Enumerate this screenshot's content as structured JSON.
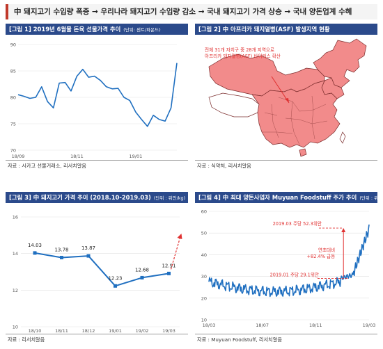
{
  "banner": "中 돼지고기 수입량 폭증 → 우리나라 돼지고기 수입량 감소 → 국내 돼지고기 가격 상승 → 국내 양돈업계 수혜",
  "colors": {
    "header": "#2b4a8b",
    "line": "#1f6fc0",
    "accent": "#e03131",
    "map_fill": "#f28b8b"
  },
  "panels": [
    {
      "title": "[그림 1] 2019년 6월물 돈육 선물가격 추이",
      "unit": "(단위: 센트/파운드)",
      "source": "자료 : 시카고 선물거래소, 리서치알음"
    },
    {
      "title": "[그림 2] 中 아프리카 돼지열병(ASF) 발생지역 현황",
      "unit": "",
      "source": "자료 : 식약처, 리서치알음"
    },
    {
      "title": "[그림 3] 中 돼지고기 가격 추이 (2018.10-2019.03)",
      "unit": "(단위 : 위안/kg)",
      "source": "자료 : 리서치알음"
    },
    {
      "title": "[그림 4] 中 최대 양돈사업자 Muyuan Foodstuff 주가 추이",
      "unit": "(단위 : 위안)",
      "source": "자료 : Muyuan Foodstuff, 리서치알음"
    }
  ],
  "map": {
    "annotation_line1": "전체 31개 자치구 중 28개 지역으로",
    "annotation_line2": "아프리카 돼지열병(ASF) 바이러스 확산"
  },
  "chart_data": [
    {
      "type": "line",
      "ylim": [
        70,
        90
      ],
      "yticks": [
        "70",
        "75",
        "80",
        "85",
        "90"
      ],
      "xticks": [
        "18/09",
        "18/11",
        "19/01",
        "19/03"
      ],
      "xtick_index": [
        0,
        10,
        20,
        30
      ],
      "values": [
        80.5,
        80.2,
        79.8,
        80.0,
        82.0,
        79.2,
        78.0,
        82.7,
        82.8,
        81.2,
        84.0,
        85.3,
        83.8,
        84.0,
        83.2,
        82.0,
        81.6,
        81.7,
        80.0,
        79.4,
        77.2,
        75.8,
        74.5,
        76.6,
        75.8,
        75.5,
        78.0,
        86.5
      ]
    },
    {
      "type": "line",
      "categories": [
        "18/10",
        "18/11",
        "18/12",
        "19/01",
        "19/02",
        "19/03"
      ],
      "values": [
        14.03,
        13.78,
        13.87,
        12.23,
        12.68,
        12.91
      ],
      "labels": [
        "14.03",
        "13.78",
        "13.87",
        "12.23",
        "12.68",
        "12.91"
      ],
      "ylim": [
        10,
        16
      ],
      "yticks": [
        "10",
        "12",
        "14",
        "16"
      ]
    },
    {
      "type": "line",
      "ylim": [
        10,
        60
      ],
      "yticks": [
        "10",
        "20",
        "30",
        "40",
        "50",
        "60"
      ],
      "xticks": [
        "18/03",
        "18/07",
        "18/11",
        "19/03"
      ],
      "annotations": {
        "high": "2019.03 주당 52.3위안",
        "low": "2019.01 주당 29.1위안",
        "change_line1": "연초대비",
        "change_line2": "+82.4% 급등"
      },
      "high_value": 52.3,
      "low_value": 29.1
    }
  ]
}
